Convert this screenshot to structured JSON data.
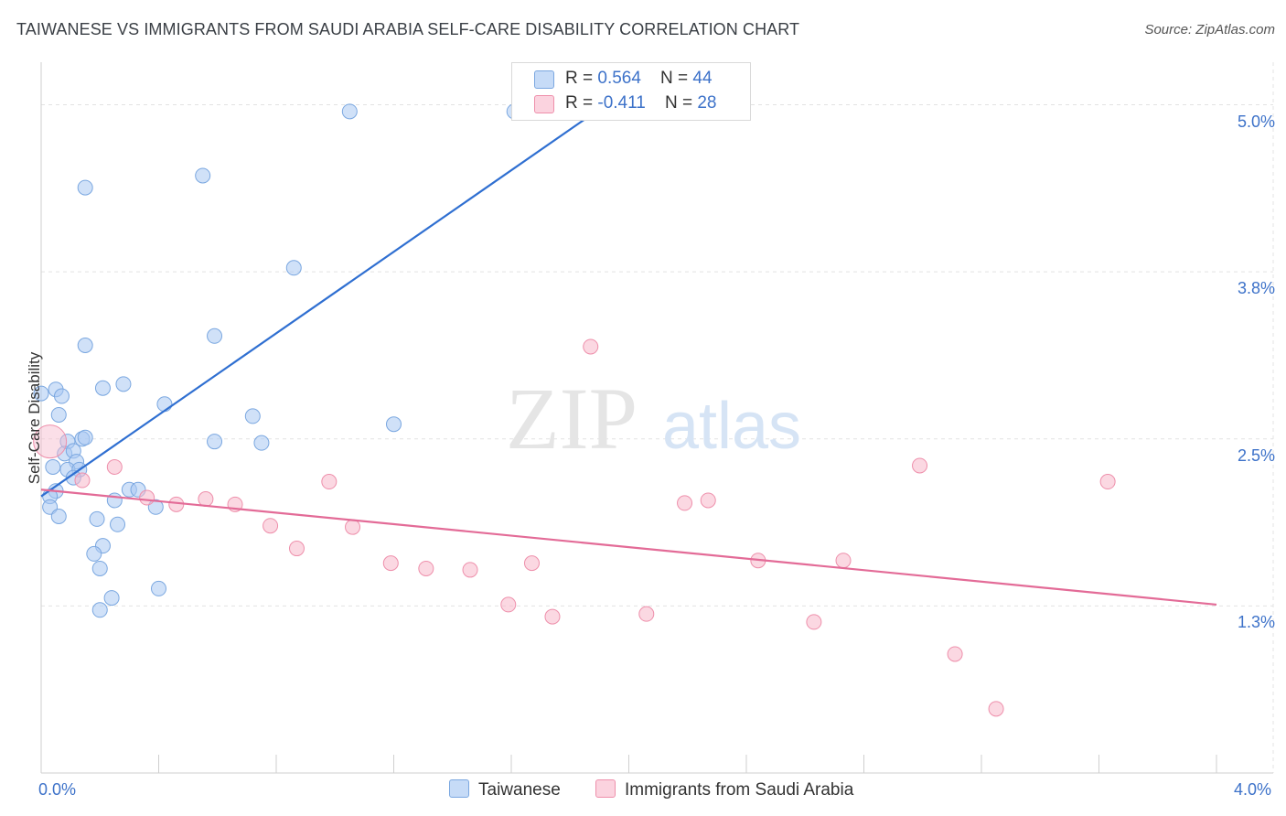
{
  "title": "TAIWANESE VS IMMIGRANTS FROM SAUDI ARABIA SELF-CARE DISABILITY CORRELATION CHART",
  "source": "Source: ZipAtlas.com",
  "watermark": {
    "zip": "ZIP",
    "atlas": "atlas"
  },
  "legend_top": {
    "rows": [
      {
        "r_label": "R = ",
        "r_value": "0.564",
        "n_label": "N = ",
        "n_value": "44",
        "color": "#a9c8f2"
      },
      {
        "r_label": "R = ",
        "r_value": "-0.411",
        "n_label": "N = ",
        "n_value": "28",
        "color": "#f7b8cb"
      }
    ]
  },
  "legend_bottom": [
    {
      "label": "Taiwanese",
      "color": "#a9c8f2"
    },
    {
      "label": "Immigrants from Saudi Arabia",
      "color": "#f7b8cb"
    }
  ],
  "chart_data": {
    "type": "scatter",
    "ylabel": "Self-Care Disability",
    "xlim": [
      0.0,
      4.0
    ],
    "ylim": [
      0.0,
      5.25
    ],
    "x_tick_labels": [
      "0.0%",
      "4.0%"
    ],
    "y_ticks": [
      {
        "value": 1.25,
        "label": "1.3%"
      },
      {
        "value": 2.5,
        "label": "2.5%"
      },
      {
        "value": 3.75,
        "label": "3.8%"
      },
      {
        "value": 5.0,
        "label": "5.0%"
      }
    ],
    "grid": true,
    "series": [
      {
        "name": "Taiwanese",
        "color": "#a9c8f2",
        "stroke": "#7aa7e0",
        "line_color": "#2f6fd1",
        "trend": {
          "x0": 0.0,
          "y0": 2.07,
          "x1": 2.0,
          "y1": 5.12
        },
        "points": [
          [
            0.0,
            2.84
          ],
          [
            0.05,
            2.87
          ],
          [
            0.07,
            2.82
          ],
          [
            0.06,
            2.68
          ],
          [
            0.09,
            2.48
          ],
          [
            0.14,
            2.5
          ],
          [
            0.15,
            2.51
          ],
          [
            0.08,
            2.39
          ],
          [
            0.11,
            2.41
          ],
          [
            0.12,
            2.33
          ],
          [
            0.04,
            2.29
          ],
          [
            0.09,
            2.27
          ],
          [
            0.13,
            2.27
          ],
          [
            0.11,
            2.21
          ],
          [
            0.05,
            2.11
          ],
          [
            0.03,
            2.07
          ],
          [
            0.03,
            1.99
          ],
          [
            0.06,
            1.92
          ],
          [
            0.19,
            1.9
          ],
          [
            0.25,
            2.04
          ],
          [
            0.3,
            2.12
          ],
          [
            0.33,
            2.12
          ],
          [
            0.26,
            1.86
          ],
          [
            0.21,
            1.7
          ],
          [
            0.18,
            1.64
          ],
          [
            0.2,
            1.53
          ],
          [
            0.39,
            1.99
          ],
          [
            0.24,
            1.31
          ],
          [
            0.2,
            1.22
          ],
          [
            0.4,
            1.38
          ],
          [
            0.21,
            2.88
          ],
          [
            0.28,
            2.91
          ],
          [
            0.42,
            2.76
          ],
          [
            0.59,
            2.48
          ],
          [
            0.72,
            2.67
          ],
          [
            0.75,
            2.47
          ],
          [
            1.2,
            2.61
          ],
          [
            0.15,
            3.2
          ],
          [
            0.59,
            3.27
          ],
          [
            0.86,
            3.78
          ],
          [
            0.15,
            4.38
          ],
          [
            0.55,
            4.47
          ],
          [
            1.05,
            4.95
          ],
          [
            1.61,
            4.95
          ]
        ]
      },
      {
        "name": "Immigrants from Saudi Arabia",
        "color": "#f7b8cb",
        "stroke": "#ee8fab",
        "line_color": "#e36b97",
        "trend": {
          "x0": 0.0,
          "y0": 2.12,
          "x1": 4.0,
          "y1": 1.26
        },
        "points": [
          [
            0.03,
            2.48
          ],
          [
            0.14,
            2.19
          ],
          [
            0.25,
            2.29
          ],
          [
            0.36,
            2.06
          ],
          [
            0.46,
            2.01
          ],
          [
            0.56,
            2.05
          ],
          [
            0.66,
            2.01
          ],
          [
            0.78,
            1.85
          ],
          [
            0.87,
            1.68
          ],
          [
            0.98,
            2.18
          ],
          [
            1.06,
            1.84
          ],
          [
            1.19,
            1.57
          ],
          [
            1.31,
            1.53
          ],
          [
            1.46,
            1.52
          ],
          [
            1.59,
            1.26
          ],
          [
            1.67,
            1.57
          ],
          [
            1.74,
            1.17
          ],
          [
            1.87,
            3.19
          ],
          [
            2.06,
            1.19
          ],
          [
            2.19,
            2.02
          ],
          [
            2.27,
            2.04
          ],
          [
            2.44,
            1.59
          ],
          [
            2.63,
            1.13
          ],
          [
            2.73,
            1.59
          ],
          [
            2.99,
            2.3
          ],
          [
            3.11,
            0.89
          ],
          [
            3.25,
            0.48
          ],
          [
            3.63,
            2.18
          ]
        ]
      }
    ]
  }
}
